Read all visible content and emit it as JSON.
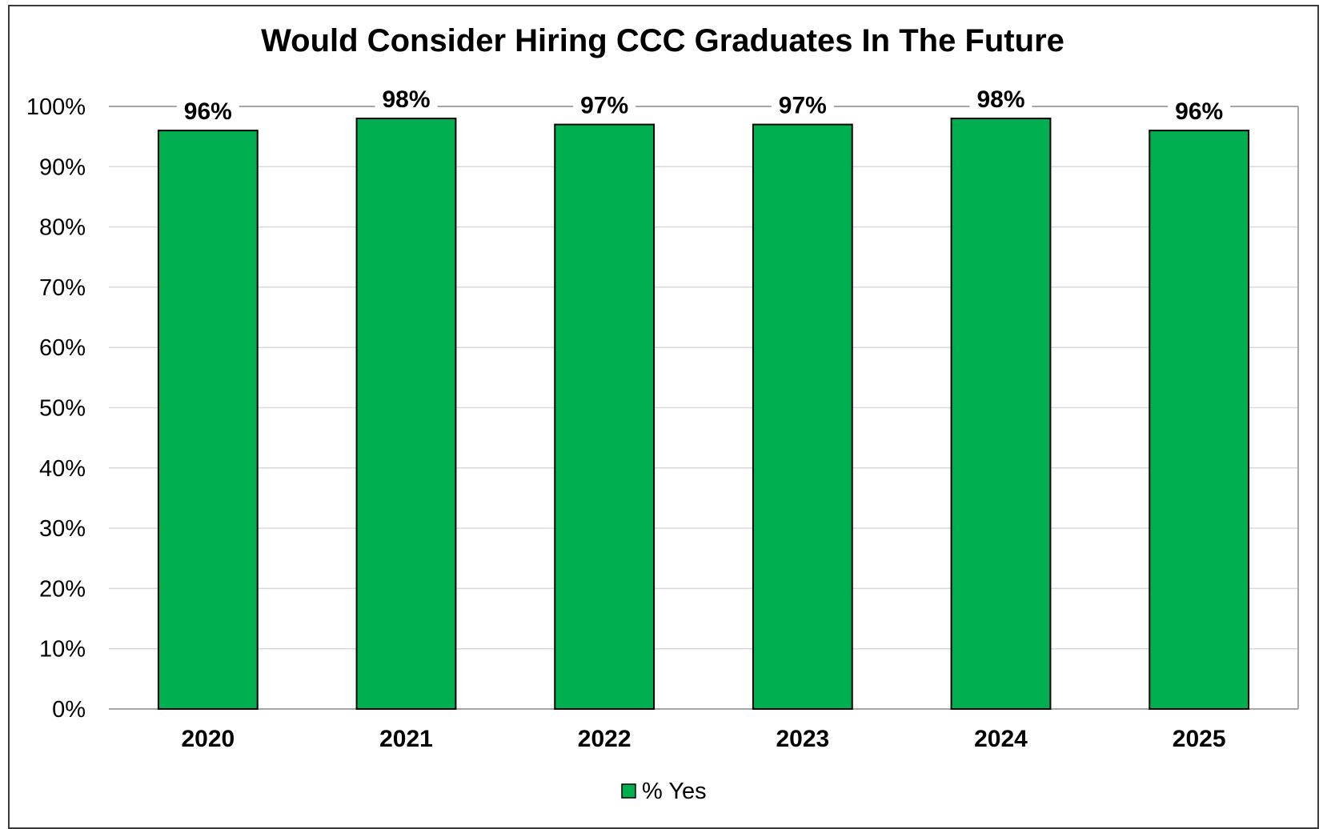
{
  "chart_data": {
    "type": "bar",
    "title": "Would Consider Hiring CCC Graduates In The Future",
    "categories": [
      "2020",
      "2021",
      "2022",
      "2023",
      "2024",
      "2025"
    ],
    "series": [
      {
        "name": "% Yes",
        "values": [
          96,
          98,
          97,
          97,
          98,
          96
        ],
        "labels": [
          "96%",
          "98%",
          "97%",
          "97%",
          "98%",
          "96%"
        ],
        "color": "#00B050"
      }
    ],
    "ylim": [
      0,
      100
    ],
    "yticks": [
      0,
      10,
      20,
      30,
      40,
      50,
      60,
      70,
      80,
      90,
      100
    ],
    "ytick_labels": [
      "0%",
      "10%",
      "20%",
      "30%",
      "40%",
      "50%",
      "60%",
      "70%",
      "80%",
      "90%",
      "100%"
    ],
    "xlabel": "",
    "ylabel": "",
    "grid": true,
    "legend": "bottom-center",
    "colors": {
      "bar": "#00B050",
      "bar_stroke": "#000000",
      "grid": "#d9d9d9",
      "axis": "#a6a6a6"
    }
  }
}
